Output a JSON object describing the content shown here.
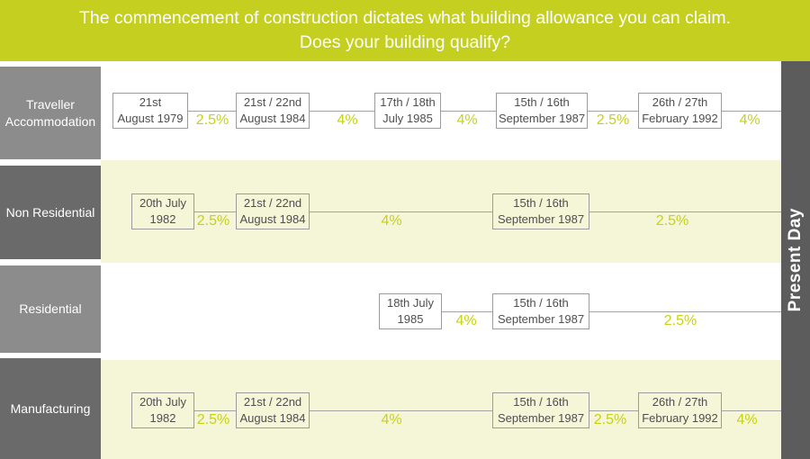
{
  "header": {
    "line1": "The commencement of construction dictates what building allowance you can claim.",
    "line2": "Does your building qualify?"
  },
  "present_day_label": "Present Day",
  "colors": {
    "accent": "#c4cf20",
    "rate": "#c6d213",
    "row_tint": "#f5f5d8",
    "sidebar_light": "#8c8c8c",
    "sidebar_dark": "#6a6a6a",
    "bar": "#5c5c5c",
    "line": "#a3a3a3",
    "box_border": "#9b9b9b",
    "box_text": "#4f4f4f"
  },
  "rows": [
    {
      "label": "Traveller Accommodation",
      "items": [
        {
          "type": "date",
          "line1": "21st",
          "line2": "August 1979"
        },
        {
          "type": "rate",
          "text": "2.5%"
        },
        {
          "type": "date",
          "line1": "21st / 22nd",
          "line2": "August 1984"
        },
        {
          "type": "rate",
          "text": "4%"
        },
        {
          "type": "date",
          "line1": "17th / 18th",
          "line2": "July 1985"
        },
        {
          "type": "rate",
          "text": "4%"
        },
        {
          "type": "date",
          "line1": "15th / 16th",
          "line2": "September 1987"
        },
        {
          "type": "rate",
          "text": "2.5%"
        },
        {
          "type": "date",
          "line1": "26th / 27th",
          "line2": "February 1992"
        },
        {
          "type": "rate",
          "text": "4%"
        }
      ]
    },
    {
      "label": "Non Residential",
      "items": [
        {
          "type": "date",
          "line1": "20th July",
          "line2": "1982"
        },
        {
          "type": "rate",
          "text": "2.5%"
        },
        {
          "type": "date",
          "line1": "21st / 22nd",
          "line2": "August 1984"
        },
        {
          "type": "rate",
          "text": "4%"
        },
        {
          "type": "date",
          "line1": "15th / 16th",
          "line2": "September 1987"
        },
        {
          "type": "rate",
          "text": "2.5%"
        }
      ]
    },
    {
      "label": "Residential",
      "items": [
        {
          "type": "date",
          "line1": "18th July",
          "line2": "1985"
        },
        {
          "type": "rate",
          "text": "4%"
        },
        {
          "type": "date",
          "line1": "15th / 16th",
          "line2": "September 1987"
        },
        {
          "type": "rate",
          "text": "2.5%"
        }
      ]
    },
    {
      "label": "Manufacturing",
      "items": [
        {
          "type": "date",
          "line1": "20th July",
          "line2": "1982"
        },
        {
          "type": "rate",
          "text": "2.5%"
        },
        {
          "type": "date",
          "line1": "21st / 22nd",
          "line2": "August 1984"
        },
        {
          "type": "rate",
          "text": "4%"
        },
        {
          "type": "date",
          "line1": "15th / 16th",
          "line2": "September 1987"
        },
        {
          "type": "rate",
          "text": "2.5%"
        },
        {
          "type": "date",
          "line1": "26th / 27th",
          "line2": "February 1992"
        },
        {
          "type": "rate",
          "text": "4%"
        }
      ]
    }
  ]
}
